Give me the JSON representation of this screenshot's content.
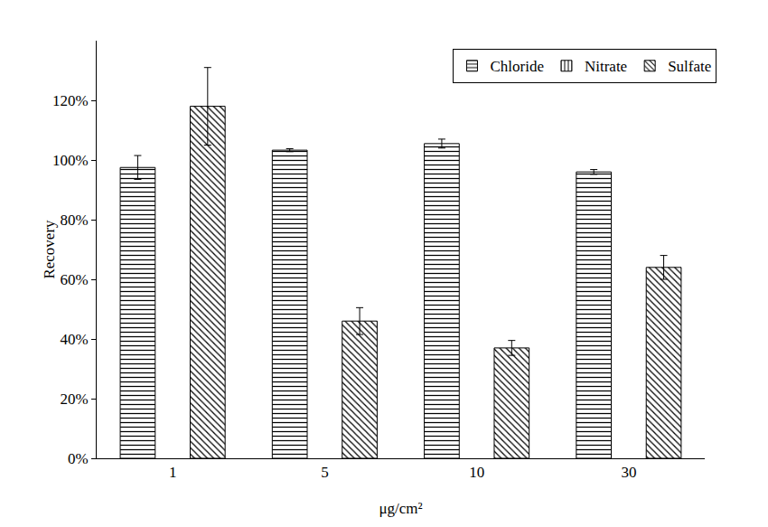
{
  "chart_data": {
    "type": "bar",
    "x_label": "μg/cm²",
    "y_label": "Recovery",
    "categories": [
      "1",
      "5",
      "10",
      "30"
    ],
    "series": [
      {
        "name": "Chloride",
        "color": "#000000",
        "marker": "horizontal",
        "values": [
          97.5,
          103.3,
          105.5,
          96
        ],
        "errors": [
          4,
          0.5,
          1.5,
          0.8
        ]
      },
      {
        "name": "Nitrate",
        "color": "#000000",
        "marker": "vertical",
        "values": [
          null,
          null,
          null,
          null
        ],
        "errors": [
          null,
          null,
          null,
          null
        ]
      },
      {
        "name": "Sulfate",
        "color": "#000000",
        "marker": "diagonal",
        "values": [
          118,
          46,
          37,
          64
        ],
        "errors": [
          13,
          4.5,
          2.5,
          4
        ]
      }
    ],
    "ylim": [
      0,
      140
    ],
    "yticks": [
      {
        "value": 0,
        "label": "0%"
      },
      {
        "value": 20,
        "label": "20%"
      },
      {
        "value": 40,
        "label": "40%"
      },
      {
        "value": 60,
        "label": "60%"
      },
      {
        "value": 80,
        "label": "80%"
      },
      {
        "value": 100,
        "label": "100%"
      },
      {
        "value": 120,
        "label": "120%"
      }
    ],
    "grid": false,
    "legend": "top-right"
  }
}
